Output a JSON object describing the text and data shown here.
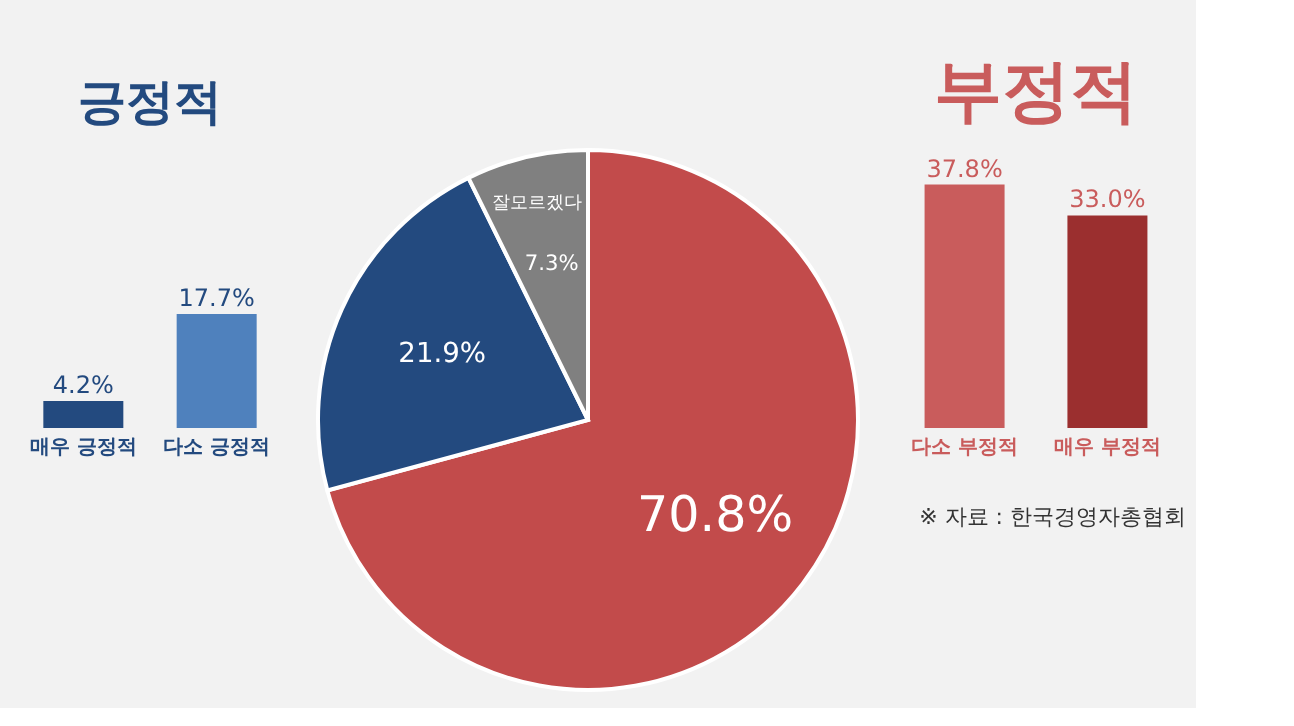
{
  "chart_data": [
    {
      "type": "bar",
      "title": "긍정적",
      "categories": [
        "매우 긍정적",
        "다소 긍정적"
      ],
      "values": [
        4.2,
        17.7
      ],
      "colors": [
        "#234a7f",
        "#4f81bd"
      ],
      "value_labels": [
        "4.2%",
        "17.7%"
      ]
    },
    {
      "type": "pie",
      "categories": [
        null,
        null,
        "잘모르겠다"
      ],
      "values": [
        70.8,
        21.9,
        7.3
      ],
      "colors": [
        "#c24b4b",
        "#234a7f",
        "#808080"
      ],
      "value_labels": [
        "70.8%",
        "21.9%",
        "7.3%"
      ]
    },
    {
      "type": "bar",
      "title": "부정적",
      "categories": [
        "다소 부정적",
        "매우 부정적"
      ],
      "values": [
        37.8,
        33.0
      ],
      "colors": [
        "#c95c5c",
        "#9b2f2f"
      ],
      "value_labels": [
        "37.8%",
        "33.0%"
      ],
      "annotations": [
        "※ 자료 : 한국경영자총협회"
      ]
    }
  ]
}
